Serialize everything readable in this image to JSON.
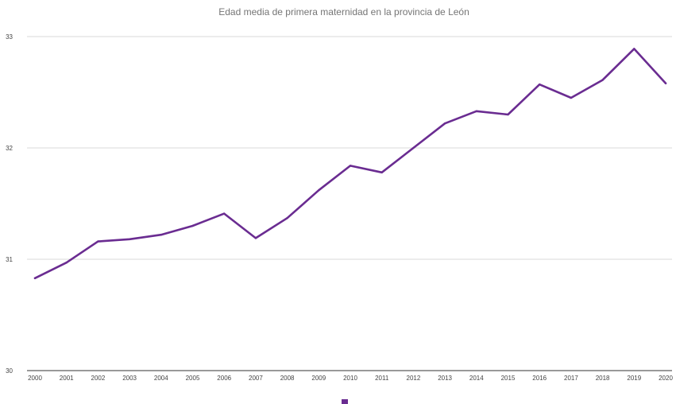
{
  "chart_data": {
    "type": "line",
    "title": "Edad media de primera maternidad en la provincia de León",
    "xlabel": "",
    "ylabel": "",
    "categories": [
      "2000",
      "2001",
      "2002",
      "2003",
      "2004",
      "2005",
      "2006",
      "2007",
      "2008",
      "2009",
      "2010",
      "2011",
      "2012",
      "2013",
      "2014",
      "2015",
      "2016",
      "2017",
      "2018",
      "2019",
      "2020"
    ],
    "y_ticks": [
      "30",
      "31",
      "32",
      "33"
    ],
    "ylim": [
      30,
      33
    ],
    "grid": true,
    "legend_position": "bottom",
    "series": [
      {
        "color": "#6a2c91",
        "values": [
          30.83,
          30.97,
          31.16,
          31.18,
          31.22,
          31.3,
          31.41,
          31.19,
          31.37,
          31.62,
          31.84,
          31.78,
          32.0,
          32.22,
          32.33,
          32.3,
          32.57,
          32.45,
          32.61,
          32.89,
          32.58
        ]
      }
    ]
  }
}
